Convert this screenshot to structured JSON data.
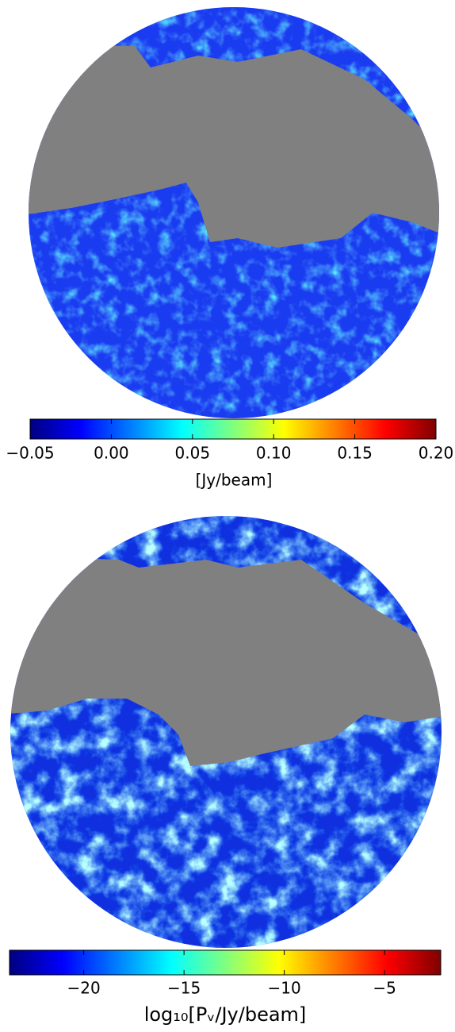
{
  "chart_data": [
    {
      "type": "heatmap",
      "clim": [
        -0.05,
        0.2
      ],
      "cticks": [
        {
          "value": -0.05,
          "label": "−0.05"
        },
        {
          "value": 0,
          "label": "0.00"
        },
        0.05,
        {
          "value": 0.1,
          "label": "0.10"
        },
        0.15,
        {
          "value": 0.2,
          "label": "0.20"
        }
      ],
      "clabel": "[Jy/beam]"
    },
    {
      "type": "heatmap",
      "clim": [
        -23.7,
        -2.2
      ],
      "cticks": [
        {
          "value": -20,
          "label": "−20"
        },
        {
          "value": -15,
          "label": "−15"
        },
        {
          "value": -10,
          "label": "−10"
        },
        {
          "value": -5,
          "label": "−5"
        }
      ],
      "clabel": "log₁₀[Pᵥ/Jy/beam]"
    }
  ]
}
